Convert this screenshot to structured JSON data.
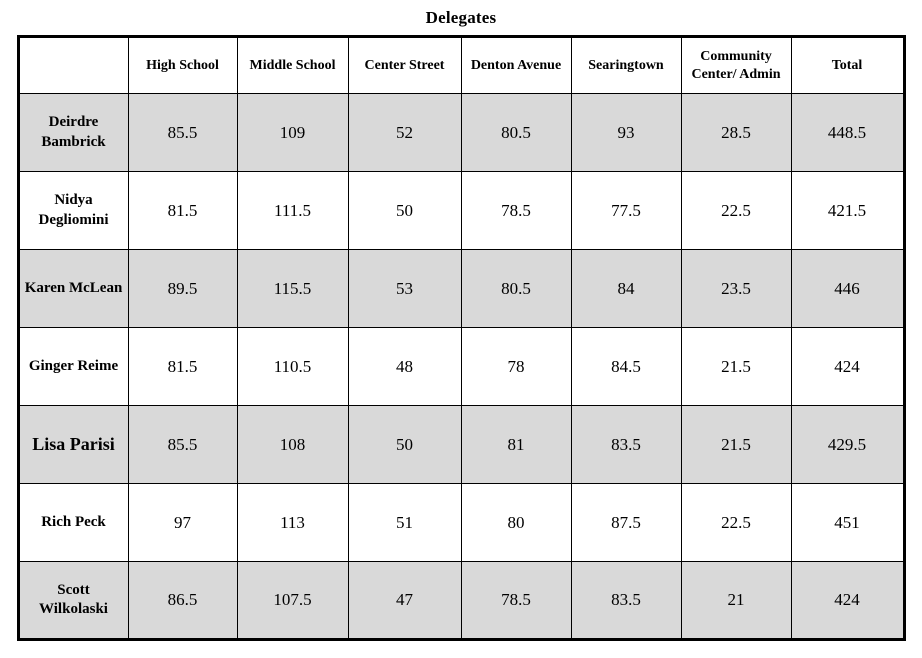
{
  "title": "Delegates",
  "colors": {
    "background": "#ffffff",
    "border": "#000000",
    "shaded_row": "#d9d9d9",
    "text": "#000000"
  },
  "chart_data": {
    "type": "table",
    "title": "Delegates",
    "columns": [
      "",
      "High School",
      "Middle School",
      "Center Street",
      "Denton Avenue",
      "Searingtown",
      "Community Center/ Admin",
      "Total"
    ],
    "rows": [
      {
        "name": "Deirdre Bambrick",
        "values": [
          "85.5",
          "109",
          "52",
          "80.5",
          "93",
          "28.5",
          "448.5"
        ],
        "shaded": true,
        "large_name": false
      },
      {
        "name": "Nidya Degliomini",
        "values": [
          "81.5",
          "111.5",
          "50",
          "78.5",
          "77.5",
          "22.5",
          "421.5"
        ],
        "shaded": false,
        "large_name": false
      },
      {
        "name": "Karen McLean",
        "values": [
          "89.5",
          "115.5",
          "53",
          "80.5",
          "84",
          "23.5",
          "446"
        ],
        "shaded": true,
        "large_name": false
      },
      {
        "name": "Ginger Reime",
        "values": [
          "81.5",
          "110.5",
          "48",
          "78",
          "84.5",
          "21.5",
          "424"
        ],
        "shaded": false,
        "large_name": false
      },
      {
        "name": "Lisa Parisi",
        "values": [
          "85.5",
          "108",
          "50",
          "81",
          "83.5",
          "21.5",
          "429.5"
        ],
        "shaded": true,
        "large_name": true
      },
      {
        "name": "Rich Peck",
        "values": [
          "97",
          "113",
          "51",
          "80",
          "87.5",
          "22.5",
          "451"
        ],
        "shaded": false,
        "large_name": false
      },
      {
        "name": "Scott Wilkolaski",
        "values": [
          "86.5",
          "107.5",
          "47",
          "78.5",
          "83.5",
          "21",
          "424"
        ],
        "shaded": true,
        "large_name": false
      }
    ],
    "layout": {
      "grid": true,
      "header_bold": true,
      "alternating_row_shading": "odd rows shaded gray starting with first data row"
    }
  }
}
